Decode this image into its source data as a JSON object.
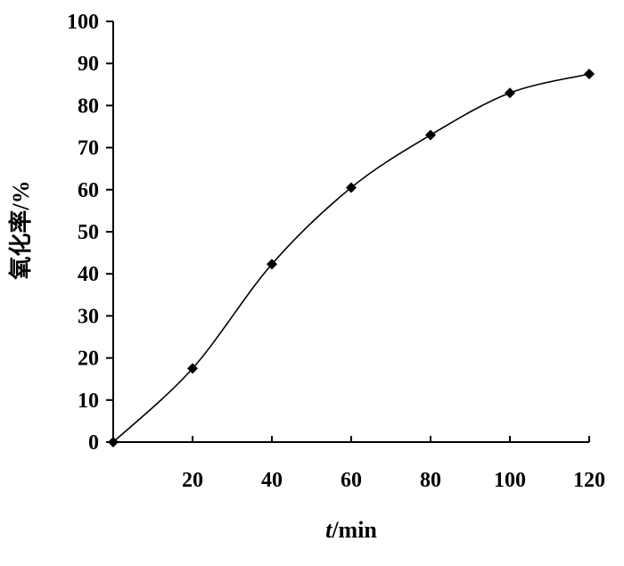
{
  "chart_data": {
    "type": "line",
    "title": "",
    "xlabel_italic": "t",
    "xlabel_rest": "/min",
    "ylabel": "氧化率/%",
    "x_ticks": [
      "20",
      "40",
      "60",
      "80",
      "100",
      "120"
    ],
    "y_ticks": [
      "0",
      "10",
      "20",
      "30",
      "40",
      "50",
      "60",
      "70",
      "80",
      "90",
      "100"
    ],
    "xlim": [
      0,
      120
    ],
    "ylim": [
      0,
      100
    ],
    "grid": false,
    "series": [
      {
        "x": [
          0,
          20,
          40,
          60,
          80,
          100,
          120
        ],
        "y": [
          0,
          17.5,
          42.3,
          60.5,
          73.0,
          83.0,
          87.5
        ]
      }
    ],
    "marker": "diamond",
    "line_color": "#000000",
    "smooth": true
  }
}
